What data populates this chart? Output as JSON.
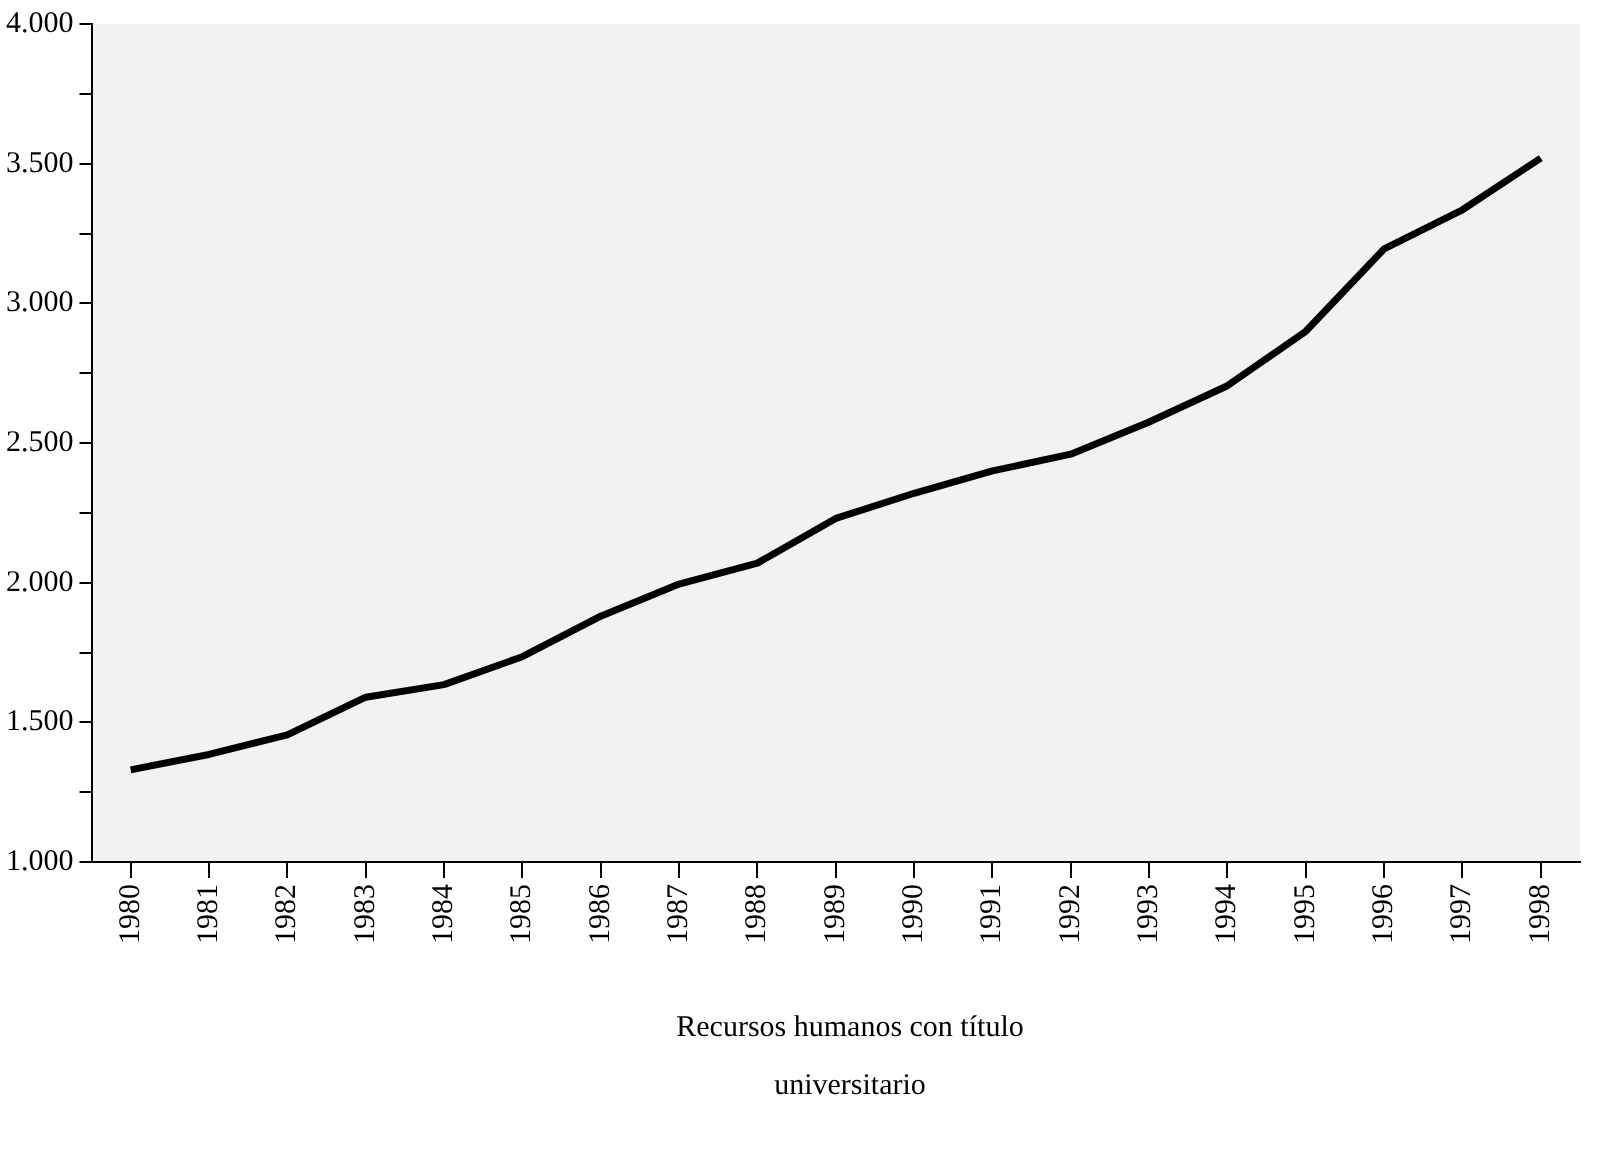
{
  "chart_data": {
    "type": "line",
    "xlabel": "Recursos humanos con título universitario",
    "categories": [
      "1980",
      "1981",
      "1982",
      "1983",
      "1984",
      "1985",
      "1986",
      "1987",
      "1988",
      "1989",
      "1990",
      "1991",
      "1992",
      "1993",
      "1994",
      "1995",
      "1996",
      "1997",
      "1998"
    ],
    "series": [
      {
        "color": "#000000",
        "values": [
          1330,
          1385,
          1455,
          1590,
          1635,
          1735,
          1880,
          1995,
          2070,
          2230,
          2320,
          2400,
          2460,
          2575,
          2705,
          2900,
          3195,
          3335,
          3520
        ]
      }
    ],
    "ylim": [
      1000,
      4000
    ],
    "yticks": [
      {
        "value": 1000,
        "label": "1.000"
      },
      {
        "value": 1250,
        "label": null
      },
      {
        "value": 1500,
        "label": "1.500"
      },
      {
        "value": 1750,
        "label": null
      },
      {
        "value": 2000,
        "label": "2.000"
      },
      {
        "value": 2250,
        "label": null
      },
      {
        "value": 2500,
        "label": "2.500"
      },
      {
        "value": 2750,
        "label": null
      },
      {
        "value": 3000,
        "label": "3.000"
      },
      {
        "value": 3250,
        "label": null
      },
      {
        "value": 3500,
        "label": "3.500"
      },
      {
        "value": 3750,
        "label": null
      },
      {
        "value": 4000,
        "label": "4.000"
      }
    ],
    "grid": false,
    "legend": false,
    "marker": "none",
    "line_style": "solid"
  }
}
